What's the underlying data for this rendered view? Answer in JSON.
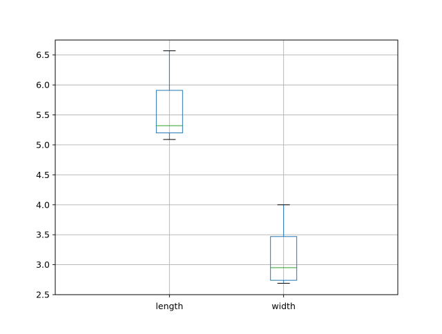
{
  "chart_data": {
    "type": "boxplot",
    "title": "",
    "xlabel": "",
    "ylabel": "",
    "ylim": [
      2.5,
      6.75
    ],
    "y_ticks": [
      2.5,
      3.0,
      3.5,
      4.0,
      4.5,
      5.0,
      5.5,
      6.0,
      6.5
    ],
    "y_tick_labels": [
      "2.5",
      "3.0",
      "3.5",
      "4.0",
      "4.5",
      "5.0",
      "5.5",
      "6.0",
      "6.5"
    ],
    "grid": true,
    "categories": [
      "length",
      "width"
    ],
    "boxes": [
      {
        "label": "length",
        "whisker_low": 5.09,
        "q1": 5.2,
        "median": 5.32,
        "q3": 5.91,
        "whisker_high": 6.57
      },
      {
        "label": "width",
        "whisker_low": 2.69,
        "q1": 2.74,
        "median": 2.95,
        "q3": 3.47,
        "whisker_high": 4.0
      }
    ],
    "colors": {
      "box": "#1f77b4",
      "median": "#2ca02c",
      "cap": "#000000",
      "grid": "#b0b0b0"
    }
  }
}
